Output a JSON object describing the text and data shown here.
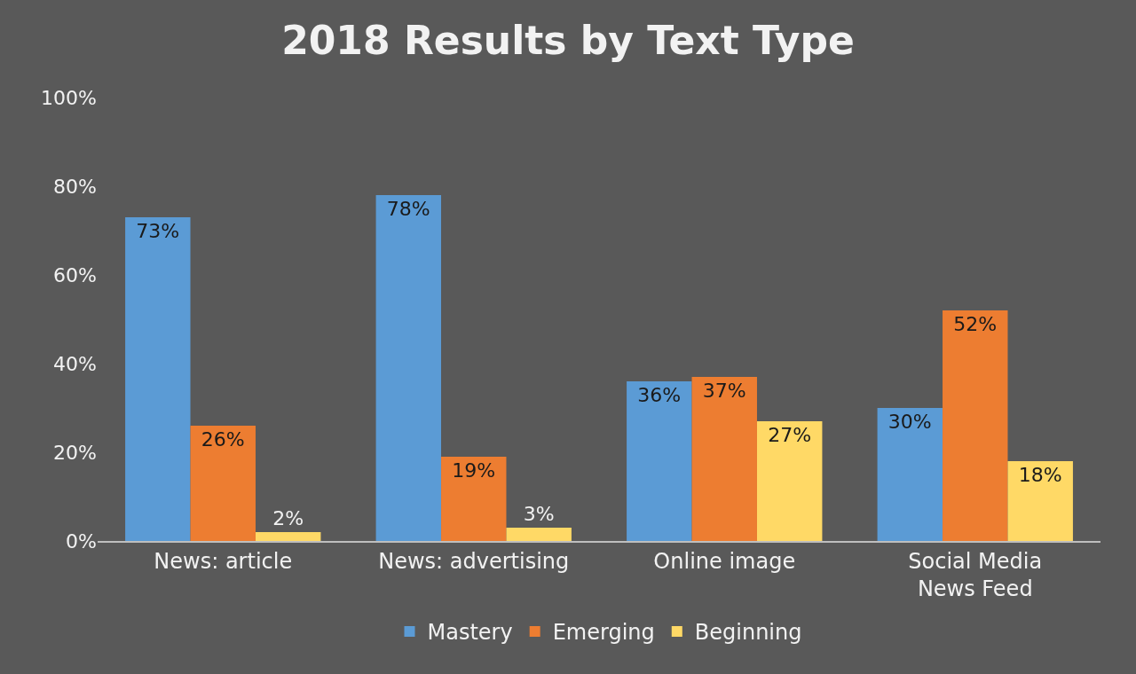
{
  "chart_data": {
    "type": "bar",
    "title": "2018 Results by Text Type",
    "categories": [
      "News: article",
      "News: advertising",
      "Online image",
      "Social Media News Feed"
    ],
    "series": [
      {
        "name": "Mastery",
        "color": "#5b9bd5",
        "values": [
          73,
          78,
          36,
          30
        ],
        "value_labels": [
          "73%",
          "78%",
          "36%",
          "30%"
        ]
      },
      {
        "name": "Emerging",
        "color": "#ed7d31",
        "values": [
          26,
          19,
          37,
          52
        ],
        "value_labels": [
          "26%",
          "19%",
          "37%",
          "52%"
        ]
      },
      {
        "name": "Beginning",
        "color": "#ffd966",
        "values": [
          2,
          3,
          27,
          18
        ],
        "value_labels": [
          "2%",
          "3%",
          "27%",
          "18%"
        ]
      }
    ],
    "ylim": [
      0,
      100
    ],
    "yticks": [
      {
        "value": 0,
        "label": "0%"
      },
      {
        "value": 20,
        "label": "20%"
      },
      {
        "value": 40,
        "label": "40%"
      },
      {
        "value": 60,
        "label": "60%"
      },
      {
        "value": 80,
        "label": "80%"
      },
      {
        "value": 100,
        "label": "100%"
      }
    ],
    "grid": false,
    "legend": "bottom"
  }
}
